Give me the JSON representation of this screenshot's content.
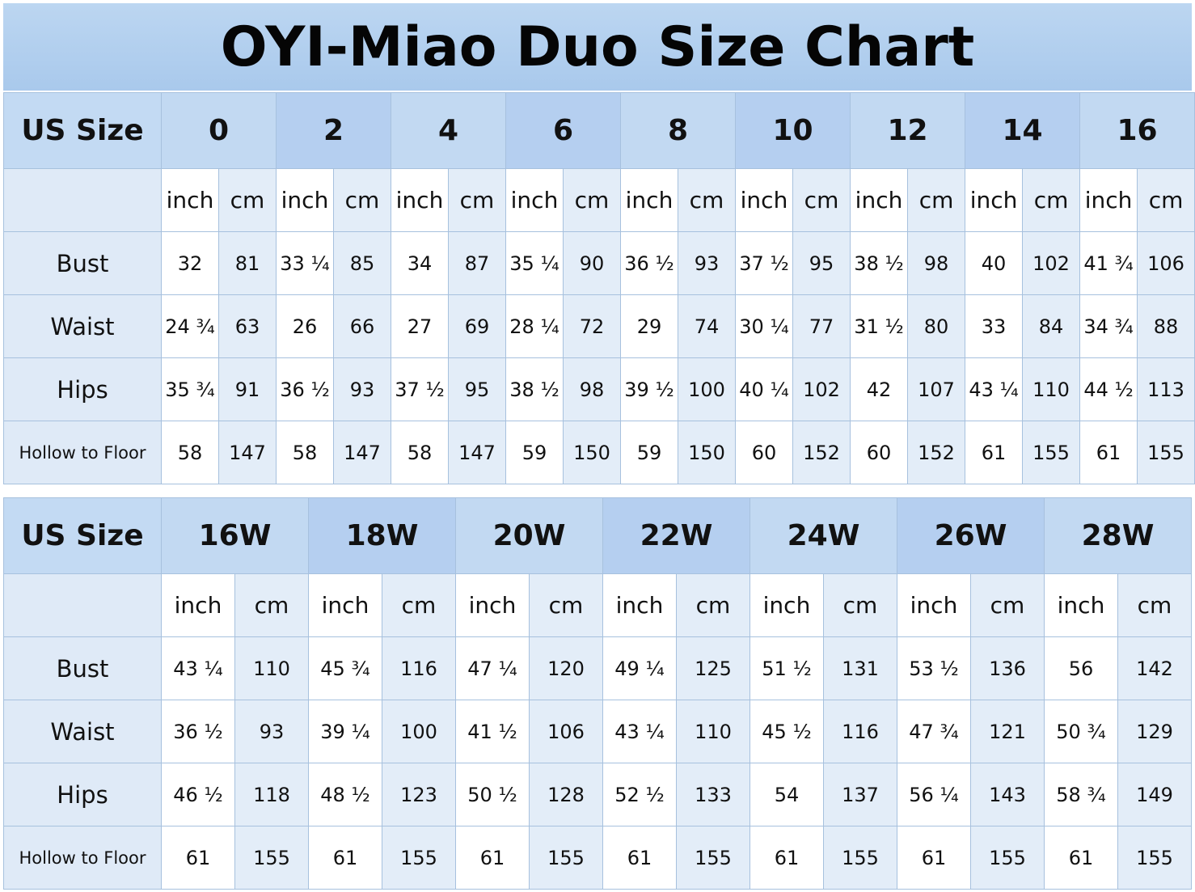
{
  "title": "OYI-Miao Duo Size Chart",
  "tables": [
    {
      "header_label": "US Size",
      "sizes": [
        "0",
        "2",
        "4",
        "6",
        "8",
        "10",
        "12",
        "14",
        "16"
      ],
      "units": [
        "inch",
        "cm"
      ],
      "rows": [
        {
          "label": "Bust",
          "values": [
            "32",
            "81",
            "33 ¼",
            "85",
            "34",
            "87",
            "35 ¼",
            "90",
            "36 ½",
            "93",
            "37 ½",
            "95",
            "38 ½",
            "98",
            "40",
            "102",
            "41 ¾",
            "106"
          ]
        },
        {
          "label": "Waist",
          "values": [
            "24 ¾",
            "63",
            "26",
            "66",
            "27",
            "69",
            "28 ¼",
            "72",
            "29",
            "74",
            "30 ¼",
            "77",
            "31 ½",
            "80",
            "33",
            "84",
            "34 ¾",
            "88"
          ]
        },
        {
          "label": "Hips",
          "values": [
            "35 ¾",
            "91",
            "36 ½",
            "93",
            "37 ½",
            "95",
            "38 ½",
            "98",
            "39 ½",
            "100",
            "40 ¼",
            "102",
            "42",
            "107",
            "43 ¼",
            "110",
            "44 ½",
            "113"
          ]
        },
        {
          "label": "Hollow to Floor",
          "values": [
            "58",
            "147",
            "58",
            "147",
            "58",
            "147",
            "59",
            "150",
            "59",
            "150",
            "60",
            "152",
            "60",
            "152",
            "61",
            "155",
            "61",
            "155"
          ]
        }
      ]
    },
    {
      "header_label": "US Size",
      "sizes": [
        "16W",
        "18W",
        "20W",
        "22W",
        "24W",
        "26W",
        "28W"
      ],
      "units": [
        "inch",
        "cm"
      ],
      "rows": [
        {
          "label": "Bust",
          "values": [
            "43 ¼",
            "110",
            "45 ¾",
            "116",
            "47 ¼",
            "120",
            "49 ¼",
            "125",
            "51 ½",
            "131",
            "53 ½",
            "136",
            "56",
            "142"
          ]
        },
        {
          "label": "Waist",
          "values": [
            "36 ½",
            "93",
            "39 ¼",
            "100",
            "41 ½",
            "106",
            "43 ¼",
            "110",
            "45 ½",
            "116",
            "47 ¾",
            "121",
            "50 ¾",
            "129"
          ]
        },
        {
          "label": "Hips",
          "values": [
            "46 ½",
            "118",
            "48 ½",
            "123",
            "50 ½",
            "128",
            "52 ½",
            "133",
            "54",
            "137",
            "56 ¼",
            "143",
            "58 ¾",
            "149"
          ]
        },
        {
          "label": "Hollow to Floor",
          "values": [
            "61",
            "155",
            "61",
            "155",
            "61",
            "155",
            "61",
            "155",
            "61",
            "155",
            "61",
            "155",
            "61",
            "155"
          ]
        }
      ]
    }
  ]
}
